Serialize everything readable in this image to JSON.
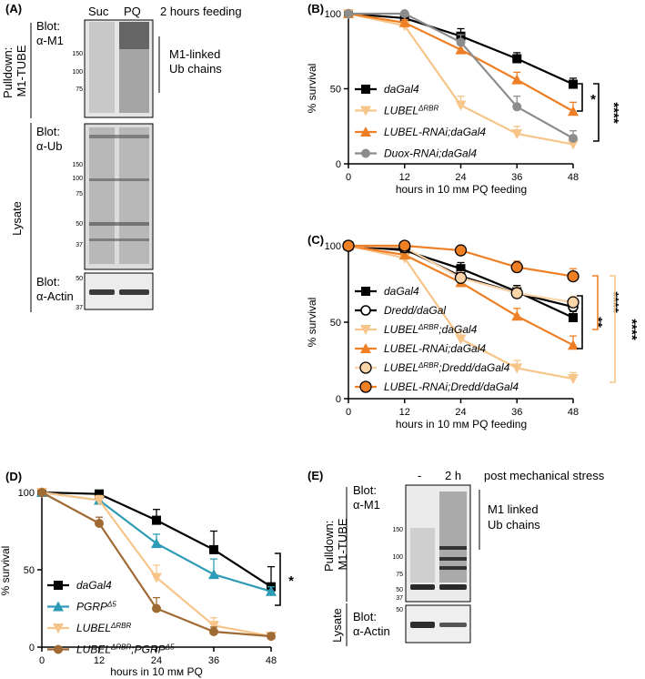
{
  "panels": {
    "A": {
      "label": "(A)",
      "lanes": [
        "Suc",
        "PQ"
      ],
      "condition": "2 hours feeding",
      "top": {
        "group": "Pulldown: M1-TUBE",
        "blot": "Blot:",
        "antibody": "α-M1",
        "markers": [
          "150",
          "100",
          "75"
        ],
        "bracket_label_1": "M1-linked",
        "bracket_label_2": "Ub chains"
      },
      "middle": {
        "group": "Lysate",
        "blot": "Blot:",
        "antibody": "α-Ub",
        "markers": [
          "150",
          "100",
          "75",
          "50",
          "37"
        ]
      },
      "bottom": {
        "blot": "Blot:",
        "antibody": "α-Actin",
        "markers": [
          "50",
          "37"
        ]
      }
    },
    "E": {
      "label": "(E)",
      "lanes": [
        "-",
        "2 h"
      ],
      "condition": "post mechanical stress",
      "top": {
        "group": "Pulldown: M1-TUBE",
        "blot": "Blot:",
        "antibody": "α-M1",
        "markers": [
          "150",
          "100",
          "75",
          "50",
          "37"
        ],
        "bracket_label_1": "M1 linked",
        "bracket_label_2": "Ub chains"
      },
      "bottom": {
        "group": "Lysate",
        "blot": "Blot:",
        "antibody": "α-Actin",
        "markers": [
          "50"
        ]
      }
    }
  },
  "chart_data": [
    {
      "panel": "(B)",
      "type": "line",
      "xlabel": "hours in 10 mм PQ feeding",
      "ylabel": "% survival",
      "x": [
        0,
        12,
        24,
        36,
        48
      ],
      "xlim": [
        0,
        48
      ],
      "ylim": [
        0,
        100
      ],
      "yticks": [
        0,
        50,
        100
      ],
      "series": [
        {
          "name": "daGal4",
          "color": "#000000",
          "marker": "square",
          "values": [
            100,
            97,
            85,
            70,
            53
          ],
          "err": [
            0,
            2,
            5,
            4,
            4
          ]
        },
        {
          "name": "LUBEL^ΔRBR",
          "color": "#f7c58a",
          "marker": "triangle-down",
          "values": [
            100,
            92,
            39,
            20,
            13
          ],
          "err": [
            0,
            3,
            6,
            5,
            4
          ]
        },
        {
          "name": "LUBEL-RNAi;daGal4",
          "color": "#ef7f24",
          "marker": "triangle-up",
          "values": [
            100,
            94,
            76,
            56,
            35
          ],
          "err": [
            0,
            2,
            4,
            5,
            6
          ]
        },
        {
          "name": "Duox-RNAi;daGal4",
          "color": "#8c8c8c",
          "marker": "circle",
          "values": [
            100,
            100,
            81,
            38,
            17
          ],
          "err": [
            0,
            1,
            5,
            7,
            5
          ]
        }
      ],
      "significance": [
        "*",
        "****"
      ]
    },
    {
      "panel": "(C)",
      "type": "line",
      "xlabel": "hours in 10 mм PQ feeding",
      "ylabel": "% survival",
      "x": [
        0,
        12,
        24,
        36,
        48
      ],
      "xlim": [
        0,
        48
      ],
      "ylim": [
        0,
        100
      ],
      "yticks": [
        0,
        50,
        100
      ],
      "series": [
        {
          "name": "daGal4",
          "color": "#000000",
          "marker": "square",
          "values": [
            100,
            97,
            85,
            70,
            53
          ],
          "err": [
            0,
            2,
            4,
            4,
            4
          ]
        },
        {
          "name": "Dredd/daGal",
          "color": "#000000",
          "marker": "open-circle",
          "values": [
            100,
            98,
            80,
            69,
            60
          ],
          "err": [
            0,
            2,
            4,
            5,
            4
          ]
        },
        {
          "name": "LUBEL^ΔRBR;daGal4",
          "color": "#f7c58a",
          "marker": "triangle-down",
          "values": [
            100,
            92,
            39,
            20,
            13
          ],
          "err": [
            0,
            3,
            5,
            5,
            4
          ]
        },
        {
          "name": "LUBEL-RNAi;daGal4",
          "color": "#ef7f24",
          "marker": "triangle-up",
          "values": [
            100,
            94,
            76,
            54,
            35
          ],
          "err": [
            0,
            2,
            4,
            5,
            6
          ]
        },
        {
          "name": "LUBEL^ΔRBR;Dredd/daGal4",
          "color": "#fbd3a8",
          "marker": "circle-light",
          "values": [
            100,
            99,
            79,
            69,
            63
          ],
          "err": [
            0,
            1,
            4,
            4,
            4
          ]
        },
        {
          "name": "LUBEL-RNAi;Dredd/daGal4",
          "color": "#ef7f24",
          "marker": "circle-orange",
          "values": [
            100,
            100,
            97,
            86,
            80
          ],
          "err": [
            0,
            1,
            2,
            4,
            5
          ]
        }
      ],
      "significance": [
        "**",
        "****",
        "****"
      ]
    },
    {
      "panel": "(D)",
      "type": "line",
      "xlabel": "hours in 10 mм PQ",
      "ylabel": "% survival",
      "x": [
        0,
        12,
        24,
        36,
        48
      ],
      "xlim": [
        0,
        48
      ],
      "ylim": [
        0,
        100
      ],
      "yticks": [
        0,
        50,
        100
      ],
      "series": [
        {
          "name": "daGal4",
          "color": "#000000",
          "marker": "square",
          "values": [
            100,
            99,
            82,
            63,
            39
          ],
          "err": [
            0,
            1,
            7,
            12,
            13
          ]
        },
        {
          "name": "PGRP^Δ5",
          "color": "#2d9bb5",
          "marker": "triangle-up",
          "values": [
            100,
            95,
            67,
            47,
            36
          ],
          "err": [
            0,
            2,
            6,
            10,
            3
          ]
        },
        {
          "name": "LUBEL^ΔRBR",
          "color": "#f7c58a",
          "marker": "triangle-down",
          "values": [
            100,
            95,
            45,
            14,
            7
          ],
          "err": [
            0,
            3,
            8,
            5,
            2
          ]
        },
        {
          "name": "LUBEL^ΔRBR;PGRP^Δ5",
          "color": "#a06a34",
          "marker": "circle",
          "values": [
            100,
            80,
            25,
            10,
            7
          ],
          "err": [
            0,
            4,
            7,
            3,
            2
          ]
        }
      ],
      "significance": [
        "*"
      ]
    }
  ]
}
